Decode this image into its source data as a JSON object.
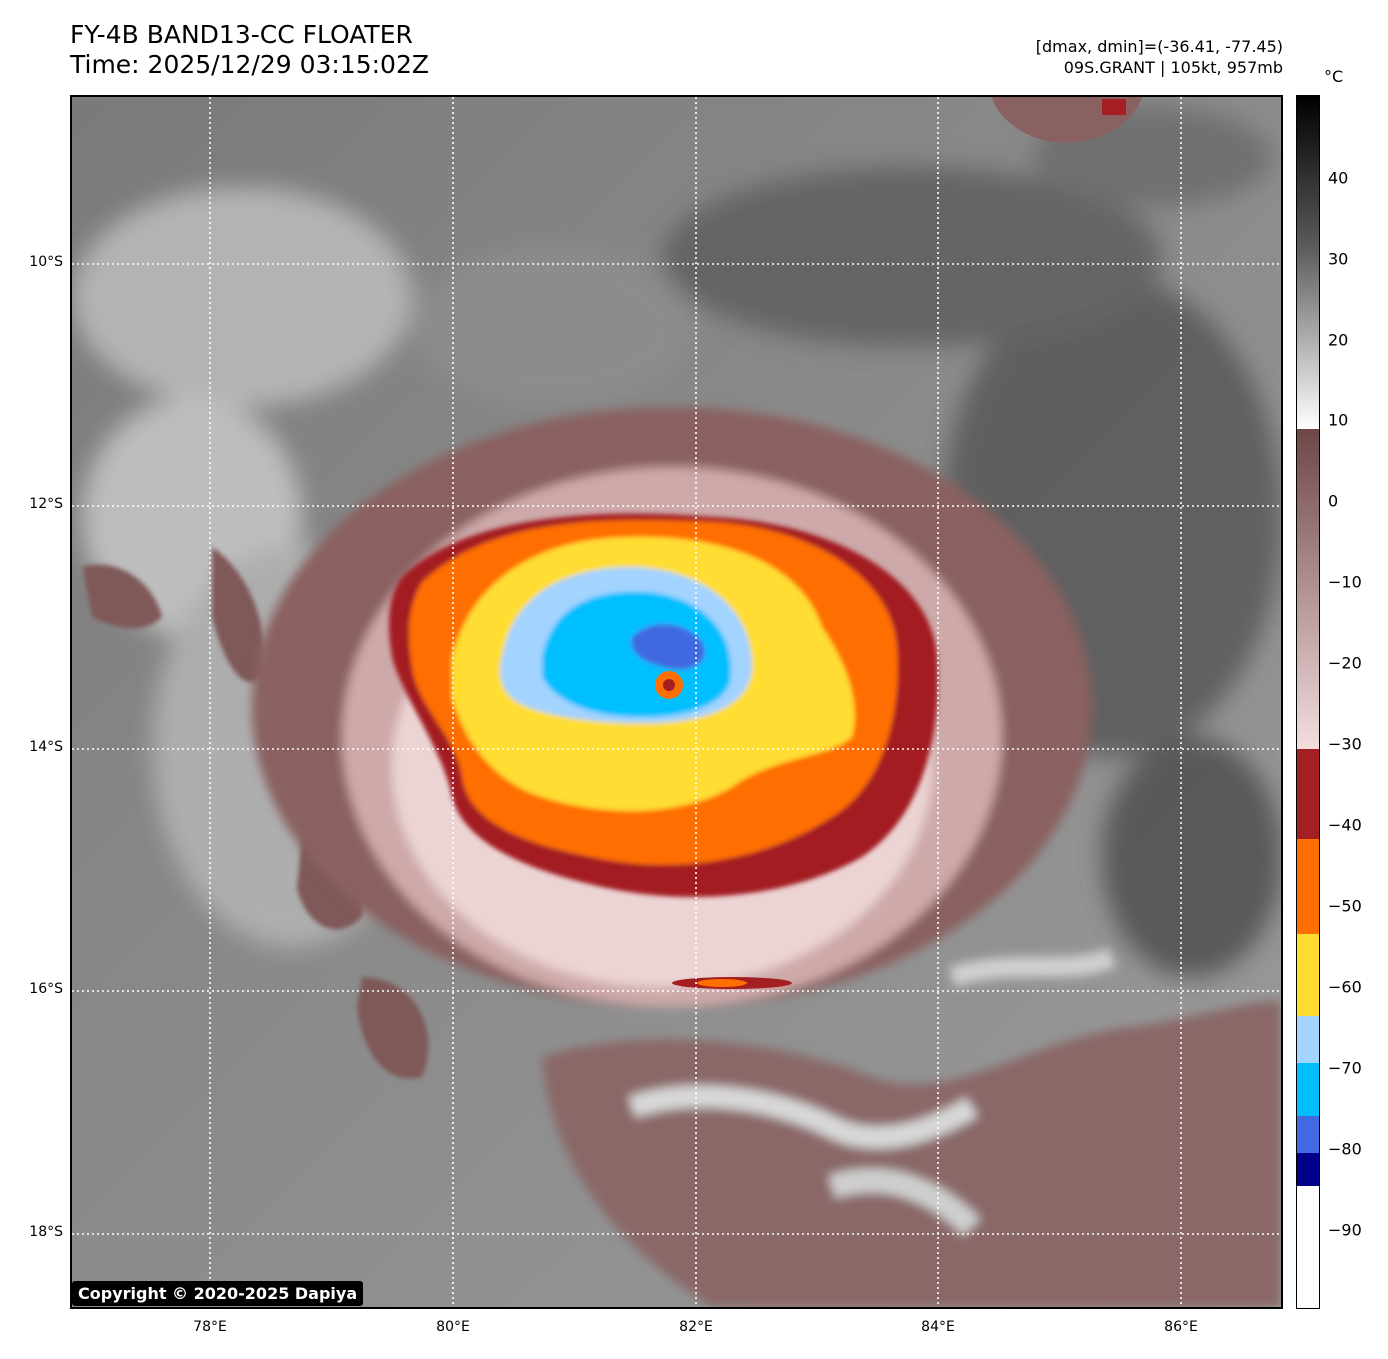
{
  "header": {
    "title_line1": "FY-4B BAND13-CC FLOATER",
    "title_line2": "Time: 2025/12/29 03:15:02Z",
    "info_line1": "[dmax, dmin]=(-36.41, -77.45)",
    "info_line2": "09S.GRANT | 105kt, 957mb"
  },
  "axes": {
    "lat_labels": [
      "10°S",
      "12°S",
      "14°S",
      "16°S",
      "18°S"
    ],
    "lon_labels": [
      "78°E",
      "80°E",
      "82°E",
      "84°E",
      "86°E"
    ]
  },
  "colorbar": {
    "unit": "°C",
    "tick_labels": [
      "40",
      "30",
      "20",
      "10",
      "0",
      "−10",
      "−20",
      "−30",
      "−40",
      "−50",
      "−60",
      "−70",
      "−80",
      "−90"
    ],
    "colors": {
      "warm_black": "#000000",
      "mid_gray": "#808080",
      "white_top": "#ffffff",
      "brown": "#7a4a4a",
      "pink": "#f0d8d8",
      "dark_red": "#a31f22",
      "orange": "#ff6e00",
      "yellow": "#ffdd30",
      "light_blue": "#a3d3ff",
      "cyan": "#00bfff",
      "royal_blue": "#4169e1",
      "navy": "#00008b",
      "white_bottom": "#ffffff"
    }
  },
  "footer": {
    "copyright": "Copyright © 2020-2025 Dapiya"
  }
}
